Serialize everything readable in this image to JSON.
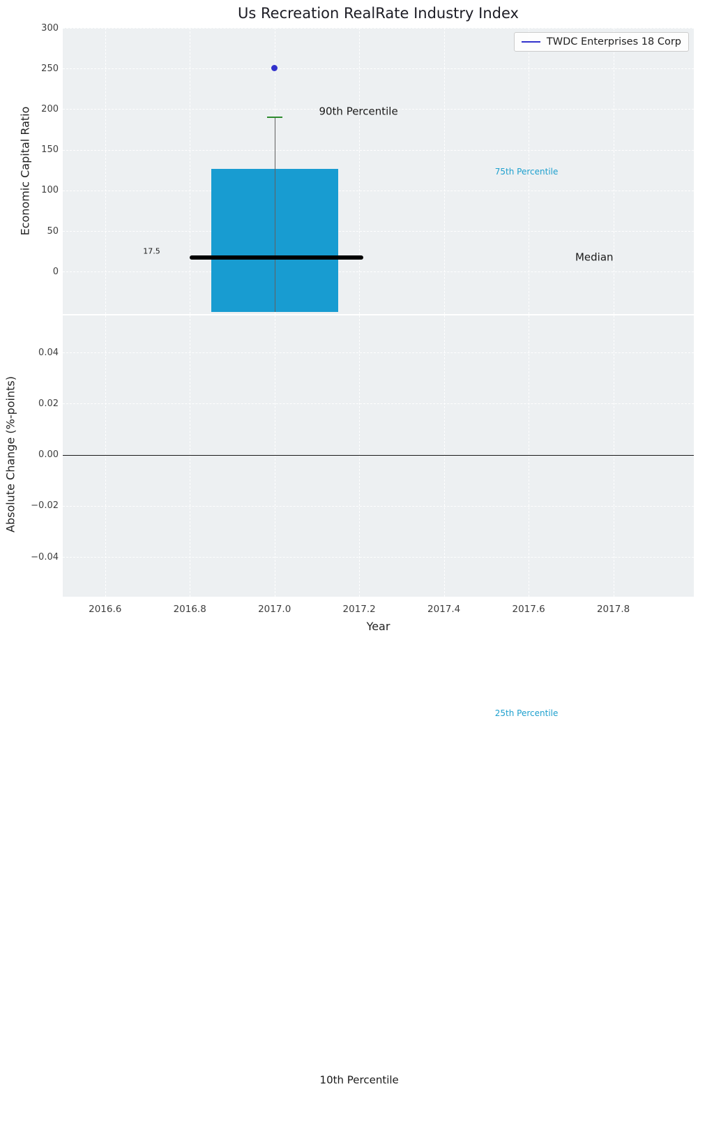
{
  "title": "Us Recreation RealRate Industry Index",
  "legend": {
    "label": "TWDC Enterprises 18 Corp"
  },
  "colors": {
    "panel_bg": "#edf0f2",
    "grid": "#ffffff",
    "box_fill": "#189cd1",
    "median": "#000000",
    "whisker": "#606060",
    "cap_green": "#2e8b2e",
    "marker_blue": "#3232cc",
    "legend_line": "#3232cc",
    "percentile_cyan": "#1ea0ce",
    "text_dark": "#1a1a1a",
    "tick_text": "#3d3d3d",
    "zero_line": "#1a1a1a"
  },
  "chart_data": {
    "type": "box",
    "title": "Us Recreation RealRate Industry Index",
    "xlabel": "Year",
    "xlim": [
      2016.5,
      2017.99
    ],
    "x_ticks": [
      {
        "v": 2016.6,
        "label": "2016.6"
      },
      {
        "v": 2016.8,
        "label": "2016.8"
      },
      {
        "v": 2017.0,
        "label": "2017.0"
      },
      {
        "v": 2017.2,
        "label": "2017.2"
      },
      {
        "v": 2017.4,
        "label": "2017.4"
      },
      {
        "v": 2017.6,
        "label": "2017.6"
      },
      {
        "v": 2017.8,
        "label": "2017.8"
      }
    ],
    "panels": [
      {
        "name": "economic-capital-ratio",
        "ylabel": "Economic Capital Ratio",
        "ylim": [
          -52,
          300
        ],
        "y_ticks": [
          {
            "v": 300,
            "label": "300"
          },
          {
            "v": 250,
            "label": "250"
          },
          {
            "v": 200,
            "label": "200"
          },
          {
            "v": 150,
            "label": "150"
          },
          {
            "v": 100,
            "label": "100"
          },
          {
            "v": 50,
            "label": "50"
          },
          {
            "v": 0,
            "label": "0"
          }
        ],
        "box": {
          "x": 2017.0,
          "half_width": 0.15,
          "p90": 190,
          "p75": 127,
          "median": 17.5,
          "p25_offscale": -543,
          "p10_offscale": -995,
          "box_bottom": -49.5,
          "median_span": [
            2016.8,
            2017.21
          ],
          "outlier": {
            "x": 2017.0,
            "y": 251
          }
        }
      },
      {
        "name": "absolute-change",
        "ylabel": "Absolute Change (%-points)",
        "ylim": [
          -0.0555,
          0.0545
        ],
        "y_ticks": [
          {
            "v": 0.04,
            "label": "0.04"
          },
          {
            "v": 0.02,
            "label": "0.02"
          },
          {
            "v": 0.0,
            "label": "0.00"
          },
          {
            "v": -0.02,
            "label": "−0.02"
          },
          {
            "v": -0.04,
            "label": "−0.04"
          }
        ],
        "zero_line": 0.0
      }
    ],
    "annotations": [
      {
        "text": "90th Percentile",
        "x": 2017.105,
        "y": 197,
        "color": "dark",
        "size": 15,
        "anchor": "start"
      },
      {
        "text": "75th Percentile",
        "x": 2017.595,
        "y": 123,
        "color": "cyan",
        "size": 12,
        "anchor": "middle"
      },
      {
        "text": "Median",
        "x": 2017.755,
        "y": 17.5,
        "color": "dark",
        "size": 15,
        "anchor": "middle"
      },
      {
        "text": "17.5",
        "x": 2016.71,
        "y": 25,
        "color": "dark",
        "size": 11,
        "anchor": "middle"
      },
      {
        "text": "25th Percentile",
        "x": 2017.595,
        "y": -543,
        "color": "cyan",
        "size": 12,
        "anchor": "middle"
      },
      {
        "text": "10th Percentile",
        "x": 2017.2,
        "y": -995,
        "color": "dark",
        "size": 15,
        "anchor": "middle"
      }
    ]
  }
}
